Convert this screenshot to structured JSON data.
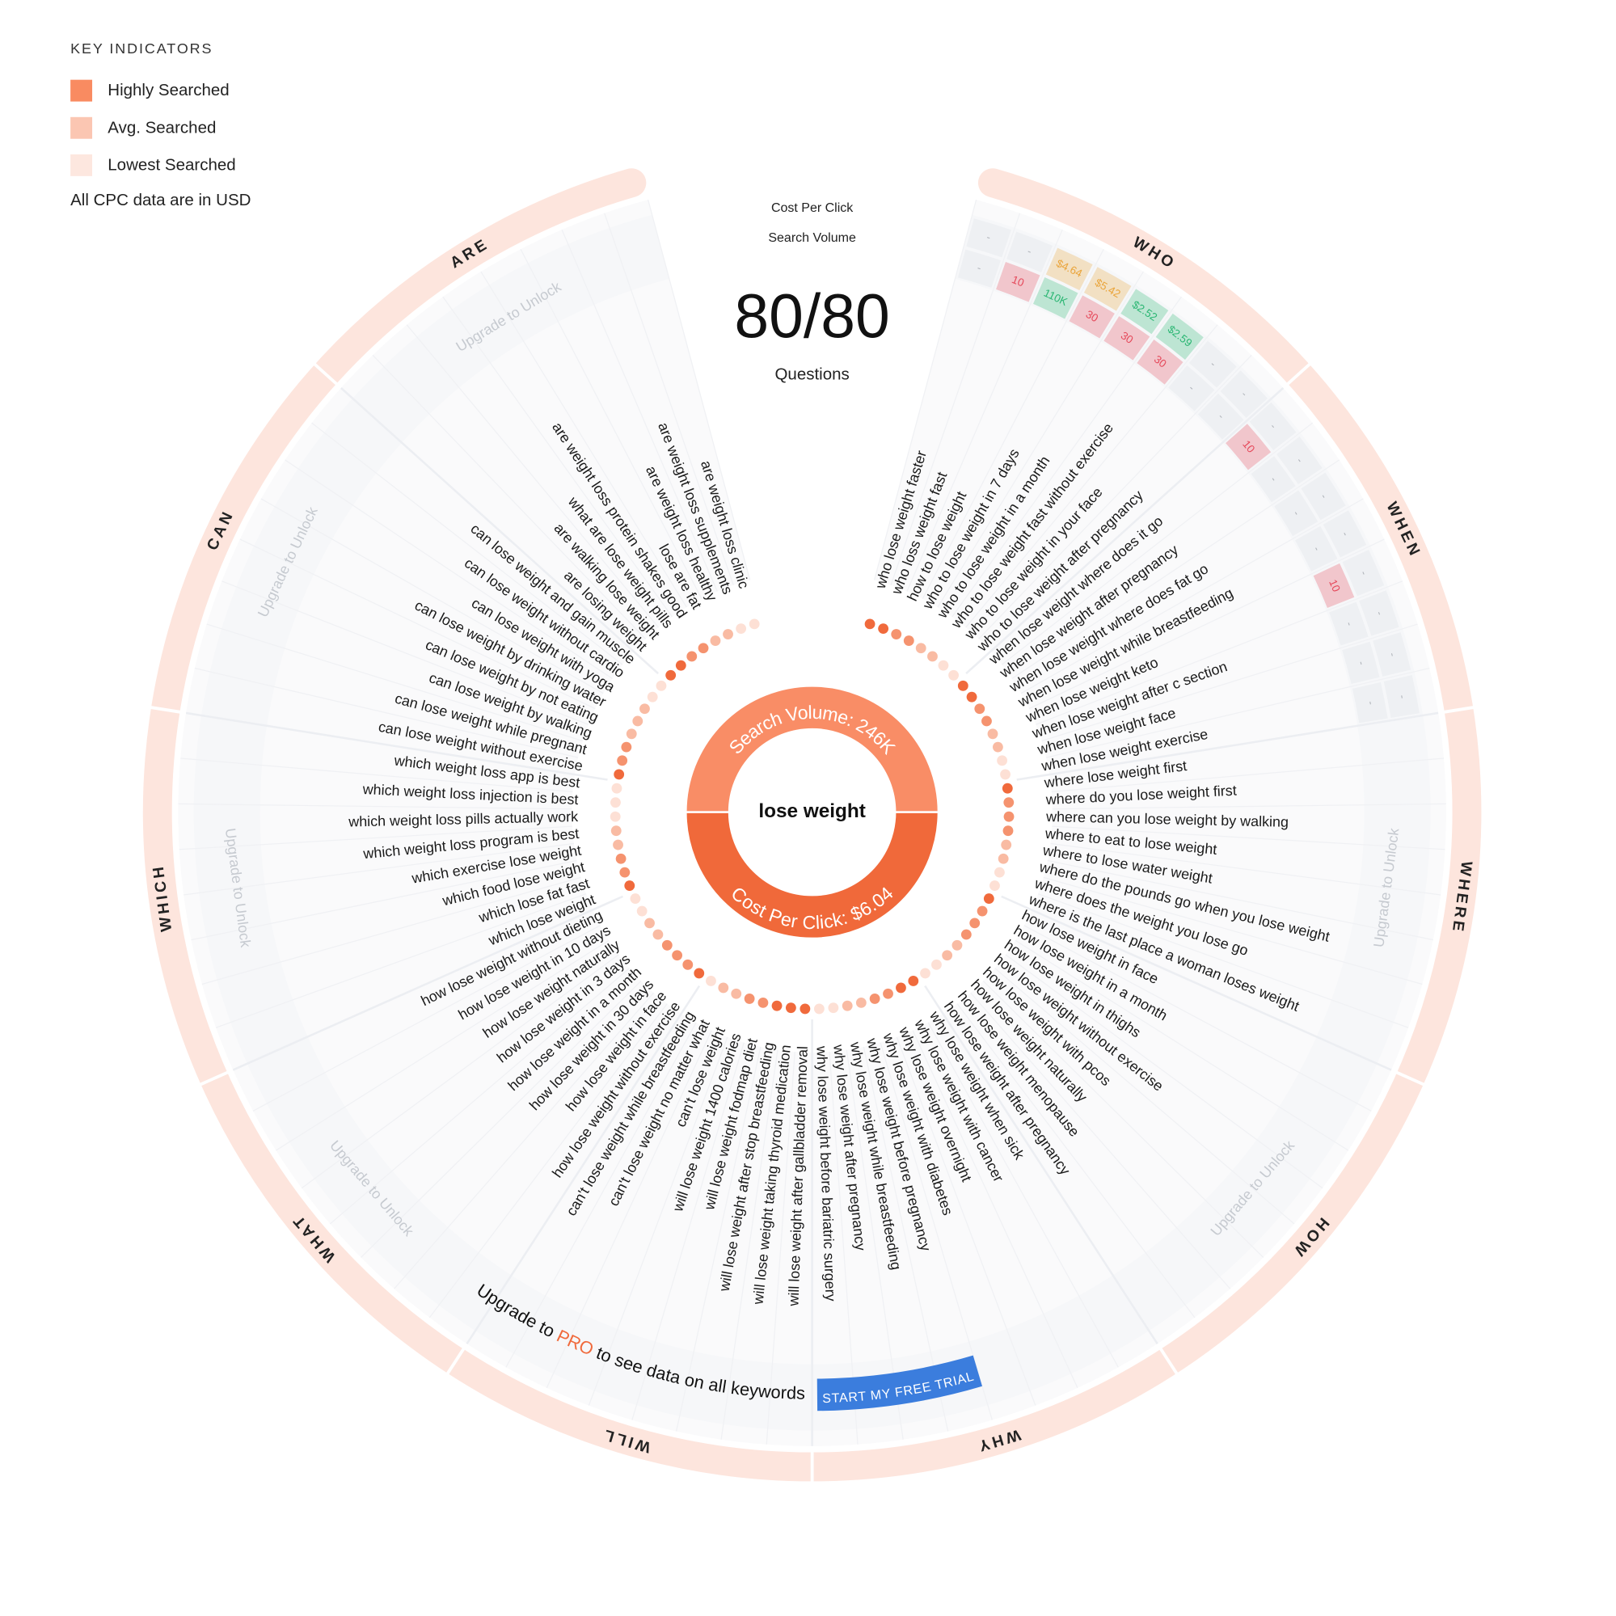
{
  "legend": {
    "title": "KEY INDICATORS",
    "items": [
      {
        "label": "Highly Searched",
        "color": "#f98b61"
      },
      {
        "label": "Avg. Searched",
        "color": "#fbc6b2"
      },
      {
        "label": "Lowest Searched",
        "color": "#fde7df"
      }
    ],
    "note": "All CPC data are in USD"
  },
  "header": {
    "cpc_heading": "Cost Per Click",
    "volume_heading": "Search Volume",
    "count": "80/80",
    "count_label": "Questions"
  },
  "center": {
    "keyword": "lose weight",
    "volume_label": "Search Volume:",
    "volume": "246K",
    "volume_color": "#f98d66",
    "cpc_label": "Cost Per Click:",
    "cpc": "$6.04",
    "cpc_color": "#f0693a"
  },
  "groups": [
    {
      "label": "WHO",
      "questions": [
        {
          "text": "who lose weight faster",
          "dot": "#f06a3c",
          "cpc": "-",
          "volume": "-"
        },
        {
          "text": "who loss weight fast",
          "dot": "#f06a3c",
          "cpc": "-",
          "volume": "10",
          "volume_color": "#e5485a"
        },
        {
          "text": "how to lose weight",
          "dot": "#f5936f",
          "cpc": "$4.64",
          "cpc_color": "#eaa43a",
          "volume": "110K",
          "volume_color": "#2bb673"
        },
        {
          "text": "who to lose weight in 7 days",
          "dot": "#f5936f",
          "cpc": "$5.42",
          "cpc_color": "#eaa43a",
          "volume": "30",
          "volume_color": "#e5485a"
        },
        {
          "text": "who to lose weight in a month",
          "dot": "#f9bba3",
          "cpc": "$2.52",
          "cpc_color": "#2bb673",
          "volume": "30",
          "volume_color": "#e5485a"
        },
        {
          "text": "who to lose weight fast without exercise",
          "dot": "#f9bba3",
          "cpc": "$2.59",
          "cpc_color": "#2bb673",
          "volume": "30",
          "volume_color": "#e5485a"
        },
        {
          "text": "who to lose weight in your face",
          "dot": "#fde0d5",
          "cpc": "-",
          "volume": "-"
        },
        {
          "text": "who to lose weight after pregnancy",
          "dot": "#fde0d5",
          "cpc": "-",
          "volume": "-"
        }
      ]
    },
    {
      "label": "WHEN",
      "questions": [
        {
          "text": "when lose weight where does it go",
          "dot": "#f06a3c",
          "cpc": "-",
          "volume": "10",
          "volume_color": "#e5485a"
        },
        {
          "text": "when lose weight after pregnancy",
          "dot": "#f06a3c",
          "cpc": "-",
          "volume": "-"
        },
        {
          "text": "when lose weight where does fat go",
          "dot": "#f5936f",
          "cpc": "-",
          "volume": "-"
        },
        {
          "text": "when lose weight while breastfeeding",
          "dot": "#f5936f",
          "cpc": "-",
          "volume": "-"
        },
        {
          "text": "when lose weight keto",
          "dot": "#f9bba3",
          "cpc": "-",
          "volume": "10",
          "volume_color": "#e5485a"
        },
        {
          "text": "when lose weight after c section",
          "dot": "#f9bba3",
          "cpc": "-",
          "volume": "-"
        },
        {
          "text": "when lose weight face",
          "dot": "#fde0d5",
          "cpc": "-",
          "volume": "-"
        },
        {
          "text": "when lose weight exercise",
          "dot": "#fde0d5",
          "cpc": "-",
          "volume": "-"
        }
      ]
    },
    {
      "label": "WHERE",
      "unlock": "Upgrade to Unlock",
      "questions": [
        {
          "text": "where lose weight first",
          "dot": "#f06a3c"
        },
        {
          "text": "where do you lose weight first",
          "dot": "#f5936f"
        },
        {
          "text": "where can you lose weight by walking",
          "dot": "#f5936f"
        },
        {
          "text": "where to eat to lose weight",
          "dot": "#f5936f"
        },
        {
          "text": "where to lose water weight",
          "dot": "#f9bba3"
        },
        {
          "text": "where do the pounds go when you lose weight",
          "dot": "#f9bba3"
        },
        {
          "text": "where does the weight you lose go",
          "dot": "#fde0d5"
        },
        {
          "text": "where is the last place a woman loses weight",
          "dot": "#fde0d5"
        }
      ]
    },
    {
      "label": "HOW",
      "unlock": "Upgrade to Unlock",
      "questions": [
        {
          "text": "how lose weight in face",
          "dot": "#f06a3c"
        },
        {
          "text": "how lose weight in a month",
          "dot": "#f5936f"
        },
        {
          "text": "how lose weight in thighs",
          "dot": "#f5936f"
        },
        {
          "text": "how lose weight without exercise",
          "dot": "#f5936f"
        },
        {
          "text": "how lose weight with pcos",
          "dot": "#f9bba3"
        },
        {
          "text": "how lose weight naturally",
          "dot": "#f9bba3"
        },
        {
          "text": "how lose weight menopause",
          "dot": "#fde0d5"
        },
        {
          "text": "how lose weight after pregnancy",
          "dot": "#fde0d5"
        }
      ]
    },
    {
      "label": "WHY",
      "questions": [
        {
          "text": "why lose weight when sick",
          "dot": "#f06a3c"
        },
        {
          "text": "why lose weight with cancer",
          "dot": "#f06a3c"
        },
        {
          "text": "why lose weight overnight",
          "dot": "#f5936f"
        },
        {
          "text": "why lose weight with diabetes",
          "dot": "#f5936f"
        },
        {
          "text": "why lose weight before pregnancy",
          "dot": "#f9bba3"
        },
        {
          "text": "why lose weight while breastfeeding",
          "dot": "#f9bba3"
        },
        {
          "text": "why lose weight after pregnancy",
          "dot": "#fde0d5"
        },
        {
          "text": "why lose weight before bariatric surgery",
          "dot": "#fde0d5"
        }
      ]
    },
    {
      "label": "WILL",
      "questions": [
        {
          "text": "will lose weight after gallbladder removal",
          "dot": "#f06a3c"
        },
        {
          "text": "will lose weight taking thyroid medication",
          "dot": "#f06a3c"
        },
        {
          "text": "will lose weight after stop breastfeeding",
          "dot": "#f06a3c"
        },
        {
          "text": "will lose weight fodmap diet",
          "dot": "#f5936f"
        },
        {
          "text": "will lose weight 1400 calories",
          "dot": "#f5936f"
        },
        {
          "text": "can't lose weight",
          "dot": "#f9bba3"
        },
        {
          "text": "can't lose weight no matter what",
          "dot": "#f9bba3"
        },
        {
          "text": "can't lose weight while breastfeeding",
          "dot": "#fde0d5"
        }
      ]
    },
    {
      "label": "WHAT",
      "unlock": "Upgrade to Unlock",
      "questions": [
        {
          "text": "how lose weight without exercise",
          "dot": "#f06a3c"
        },
        {
          "text": "how lose weight in face",
          "dot": "#f5936f"
        },
        {
          "text": "how lose weight in 30 days",
          "dot": "#f5936f"
        },
        {
          "text": "how lose weight in a month",
          "dot": "#f5936f"
        },
        {
          "text": "how lose weight in 3 days",
          "dot": "#f9bba3"
        },
        {
          "text": "how lose weight naturally",
          "dot": "#f9bba3"
        },
        {
          "text": "how lose weight in 10 days",
          "dot": "#fde0d5"
        },
        {
          "text": "how lose weight without dieting",
          "dot": "#fde0d5"
        }
      ]
    },
    {
      "label": "WHICH",
      "unlock": "Upgrade to Unlock",
      "questions": [
        {
          "text": "which lose weight",
          "dot": "#f06a3c"
        },
        {
          "text": "which lose fat fast",
          "dot": "#f5936f"
        },
        {
          "text": "which food lose weight",
          "dot": "#f5936f"
        },
        {
          "text": "which exercise lose weight",
          "dot": "#f9bba3"
        },
        {
          "text": "which weight loss program is best",
          "dot": "#f9bba3"
        },
        {
          "text": "which weight loss pills actually work",
          "dot": "#fde0d5"
        },
        {
          "text": "which weight loss injection is best",
          "dot": "#fde0d5"
        },
        {
          "text": "which weight loss app is best",
          "dot": "#fde0d5"
        }
      ]
    },
    {
      "label": "CAN",
      "unlock": "Upgrade to Unlock",
      "questions": [
        {
          "text": "can lose weight without exercise",
          "dot": "#f06a3c"
        },
        {
          "text": "can lose weight while pregnant",
          "dot": "#f5936f"
        },
        {
          "text": "can lose weight by walking",
          "dot": "#f5936f"
        },
        {
          "text": "can lose weight by not eating",
          "dot": "#f9bba3"
        },
        {
          "text": "can lose weight by drinking water",
          "dot": "#f9bba3"
        },
        {
          "text": "can lose weight with yoga",
          "dot": "#f9bba3"
        },
        {
          "text": "can lose weight without cardio",
          "dot": "#fde0d5"
        },
        {
          "text": "can lose weight and gain muscle",
          "dot": "#fde0d5"
        }
      ]
    },
    {
      "label": "ARE",
      "unlock": "Upgrade to Unlock",
      "questions": [
        {
          "text": "are losing weight",
          "dot": "#f06a3c"
        },
        {
          "text": "are walking lose weight",
          "dot": "#f06a3c"
        },
        {
          "text": "what are lose weight pills",
          "dot": "#f5936f"
        },
        {
          "text": "are weight loss protein shakes good",
          "dot": "#f5936f"
        },
        {
          "text": "lose are fat",
          "dot": "#f9bba3"
        },
        {
          "text": "are weight loss healthy",
          "dot": "#f9bba3"
        },
        {
          "text": "are weight loss supplements",
          "dot": "#fde0d5"
        },
        {
          "text": "are weight loss clinic",
          "dot": "#fde0d5"
        }
      ]
    }
  ],
  "cta": {
    "prefix": "Upgrade to",
    "highlight": "PRO",
    "suffix": "to see data on all keywords",
    "button": "START MY FREE TRIAL"
  }
}
